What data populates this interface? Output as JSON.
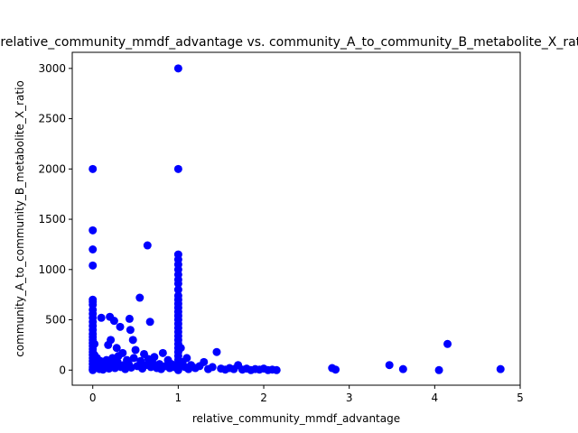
{
  "chart_data": {
    "type": "scatter",
    "title": "relative_community_mmdf_advantage vs. community_A_to_community_B_metabolite_X_ratio",
    "xlabel": "relative_community_mmdf_advantage",
    "ylabel": "community_A_to_community_B_metabolite_X_ratio",
    "xlim": [
      -0.24,
      5.0
    ],
    "ylim": [
      -150,
      3160
    ],
    "x_ticks": [
      0,
      1,
      2,
      3,
      4,
      5
    ],
    "y_ticks": [
      0,
      500,
      1000,
      1500,
      2000,
      2500,
      3000
    ],
    "x_tick_labels": [
      "0",
      "1",
      "2",
      "3",
      "4",
      "5"
    ],
    "y_tick_labels": [
      "0",
      "500",
      "1000",
      "1500",
      "2000",
      "2500",
      "3000"
    ],
    "grid": false,
    "legend": "none",
    "marker_color": "#0000ff",
    "series": [
      {
        "points": [
          [
            0,
            2000
          ],
          [
            0,
            1390
          ],
          [
            0,
            1200
          ],
          [
            0,
            1040
          ],
          [
            0,
            700
          ],
          [
            0,
            680
          ],
          [
            0,
            650
          ],
          [
            0,
            600
          ],
          [
            0,
            560
          ],
          [
            0,
            520
          ],
          [
            0,
            480
          ],
          [
            0,
            440
          ],
          [
            0,
            400
          ],
          [
            0,
            360
          ],
          [
            0,
            330
          ],
          [
            0,
            300
          ],
          [
            0,
            270
          ],
          [
            0,
            240
          ],
          [
            0,
            210
          ],
          [
            0,
            180
          ],
          [
            0,
            150
          ],
          [
            0,
            120
          ],
          [
            0,
            90
          ],
          [
            0,
            60
          ],
          [
            0,
            30
          ],
          [
            0,
            10
          ],
          [
            0,
            0
          ],
          [
            0.02,
            260
          ],
          [
            0.02,
            150
          ],
          [
            0.03,
            80
          ],
          [
            0.04,
            40
          ],
          [
            0.05,
            120
          ],
          [
            0.06,
            20
          ],
          [
            0.07,
            60
          ],
          [
            0.08,
            10
          ],
          [
            0.09,
            90
          ],
          [
            0.1,
            520
          ],
          [
            0.1,
            30
          ],
          [
            0.12,
            5
          ],
          [
            0.13,
            70
          ],
          [
            0.15,
            40
          ],
          [
            0.16,
            100
          ],
          [
            0.18,
            250
          ],
          [
            0.19,
            15
          ],
          [
            0.2,
            530
          ],
          [
            0.21,
            300
          ],
          [
            0.22,
            60
          ],
          [
            0.23,
            120
          ],
          [
            0.25,
            490
          ],
          [
            0.26,
            20
          ],
          [
            0.28,
            220
          ],
          [
            0.29,
            80
          ],
          [
            0.3,
            140
          ],
          [
            0.32,
            430
          ],
          [
            0.33,
            30
          ],
          [
            0.35,
            170
          ],
          [
            0.36,
            50
          ],
          [
            0.38,
            10
          ],
          [
            0.4,
            100
          ],
          [
            0.42,
            60
          ],
          [
            0.43,
            510
          ],
          [
            0.44,
            400
          ],
          [
            0.45,
            25
          ],
          [
            0.47,
            300
          ],
          [
            0.48,
            120
          ],
          [
            0.5,
            200
          ],
          [
            0.52,
            40
          ],
          [
            0.55,
            720
          ],
          [
            0.56,
            90
          ],
          [
            0.58,
            15
          ],
          [
            0.6,
            160
          ],
          [
            0.62,
            50
          ],
          [
            0.64,
            1240
          ],
          [
            0.65,
            110
          ],
          [
            0.67,
            480
          ],
          [
            0.68,
            30
          ],
          [
            0.7,
            70
          ],
          [
            0.72,
            130
          ],
          [
            0.75,
            20
          ],
          [
            0.78,
            60
          ],
          [
            0.8,
            10
          ],
          [
            0.82,
            170
          ],
          [
            0.85,
            40
          ],
          [
            0.88,
            100
          ],
          [
            0.9,
            20
          ],
          [
            0.92,
            60
          ],
          [
            0.95,
            30
          ],
          [
            1.0,
            3000
          ],
          [
            1.0,
            2000
          ],
          [
            1.0,
            1150
          ],
          [
            1.0,
            1100
          ],
          [
            1.0,
            1050
          ],
          [
            1.0,
            1000
          ],
          [
            1.0,
            950
          ],
          [
            1.0,
            900
          ],
          [
            1.0,
            860
          ],
          [
            1.0,
            800
          ],
          [
            1.0,
            740
          ],
          [
            1.0,
            700
          ],
          [
            1.0,
            660
          ],
          [
            1.0,
            620
          ],
          [
            1.0,
            580
          ],
          [
            1.0,
            540
          ],
          [
            1.0,
            500
          ],
          [
            1.0,
            460
          ],
          [
            1.0,
            420
          ],
          [
            1.0,
            380
          ],
          [
            1.0,
            340
          ],
          [
            1.0,
            300
          ],
          [
            1.0,
            260
          ],
          [
            1.0,
            220
          ],
          [
            1.0,
            180
          ],
          [
            1.0,
            140
          ],
          [
            1.0,
            100
          ],
          [
            1.0,
            60
          ],
          [
            1.0,
            20
          ],
          [
            1.0,
            0
          ],
          [
            1.03,
            220
          ],
          [
            1.05,
            80
          ],
          [
            1.08,
            30
          ],
          [
            1.1,
            120
          ],
          [
            1.12,
            10
          ],
          [
            1.15,
            50
          ],
          [
            1.2,
            20
          ],
          [
            1.25,
            40
          ],
          [
            1.3,
            80
          ],
          [
            1.35,
            10
          ],
          [
            1.4,
            30
          ],
          [
            1.45,
            180
          ],
          [
            1.5,
            15
          ],
          [
            1.55,
            5
          ],
          [
            1.6,
            20
          ],
          [
            1.65,
            10
          ],
          [
            1.7,
            50
          ],
          [
            1.75,
            5
          ],
          [
            1.8,
            15
          ],
          [
            1.85,
            0
          ],
          [
            1.9,
            10
          ],
          [
            1.95,
            5
          ],
          [
            2.0,
            15
          ],
          [
            2.05,
            0
          ],
          [
            2.1,
            5
          ],
          [
            2.15,
            0
          ],
          [
            2.8,
            20
          ],
          [
            2.84,
            5
          ],
          [
            3.47,
            50
          ],
          [
            3.63,
            10
          ],
          [
            4.05,
            0
          ],
          [
            4.15,
            260
          ],
          [
            4.77,
            10
          ]
        ]
      }
    ]
  }
}
